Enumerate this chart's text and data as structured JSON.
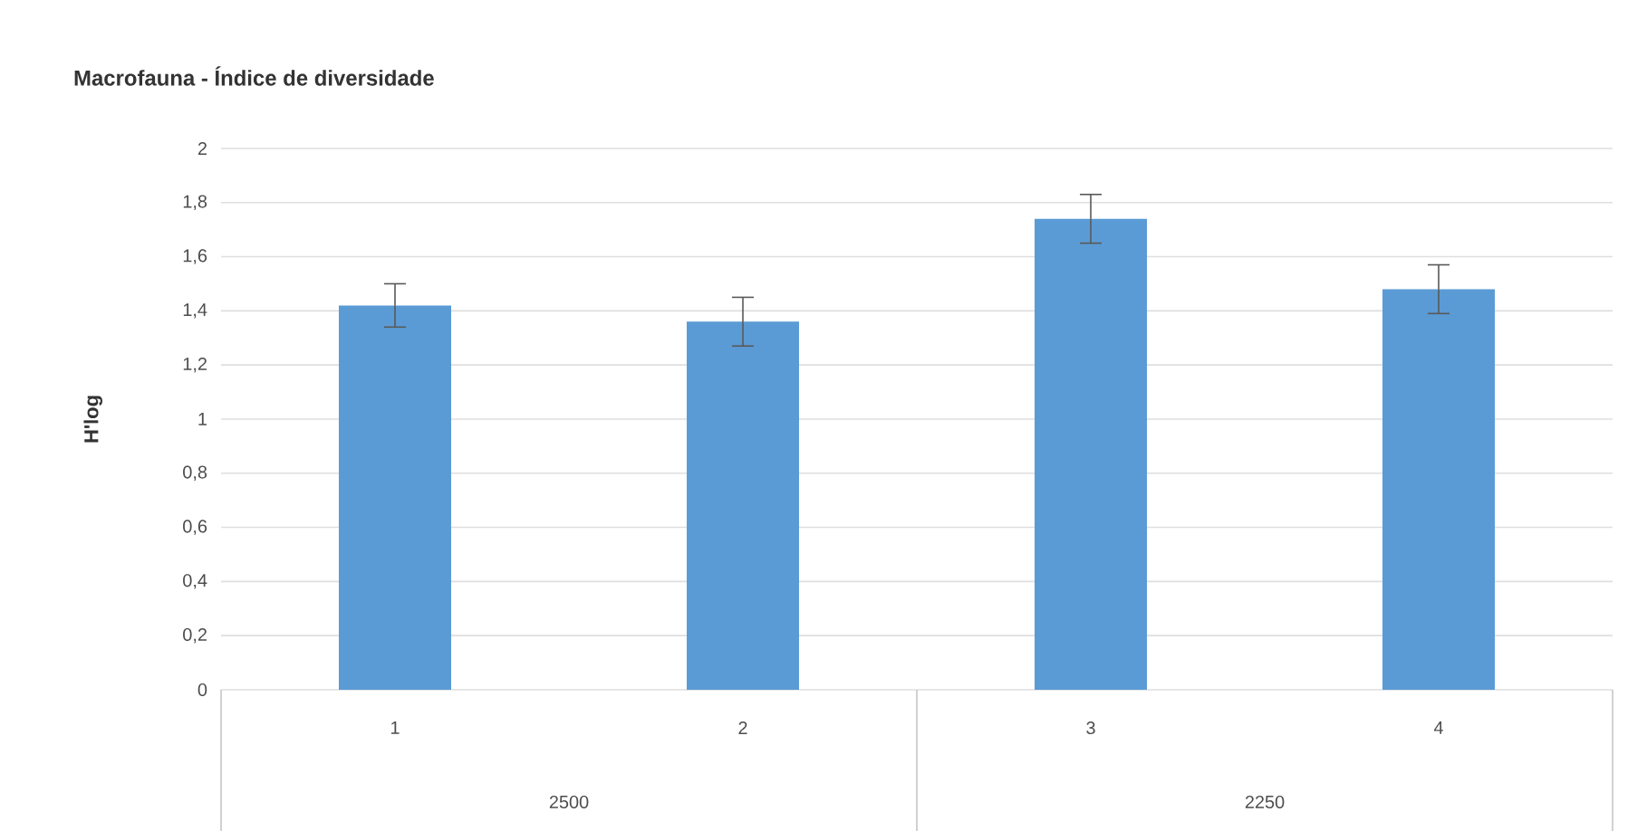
{
  "chart_data": {
    "type": "bar",
    "title": "Macrofauna - Índice de diversidade",
    "ylabel": "H'log",
    "categories": [
      "1",
      "2",
      "3",
      "4"
    ],
    "values": [
      1.42,
      1.36,
      1.74,
      1.48
    ],
    "errors": [
      0.08,
      0.09,
      0.09,
      0.09
    ],
    "color": "#5b9bd5",
    "ylim": [
      0,
      2
    ],
    "yticks": [
      0,
      {
        "value": 0.2,
        "label": "0,2"
      },
      {
        "value": 0.4,
        "label": "0,4"
      },
      {
        "value": 0.6,
        "label": "0,6"
      },
      {
        "value": 0.8,
        "label": "0,8"
      },
      1,
      {
        "value": 1.2,
        "label": "1,2"
      },
      {
        "value": 1.4,
        "label": "1,4"
      },
      {
        "value": 1.6,
        "label": "1,6"
      },
      {
        "value": 1.8,
        "label": "1,8"
      },
      2
    ],
    "grid": "y",
    "annotations": [
      "2500",
      "2250"
    ]
  }
}
